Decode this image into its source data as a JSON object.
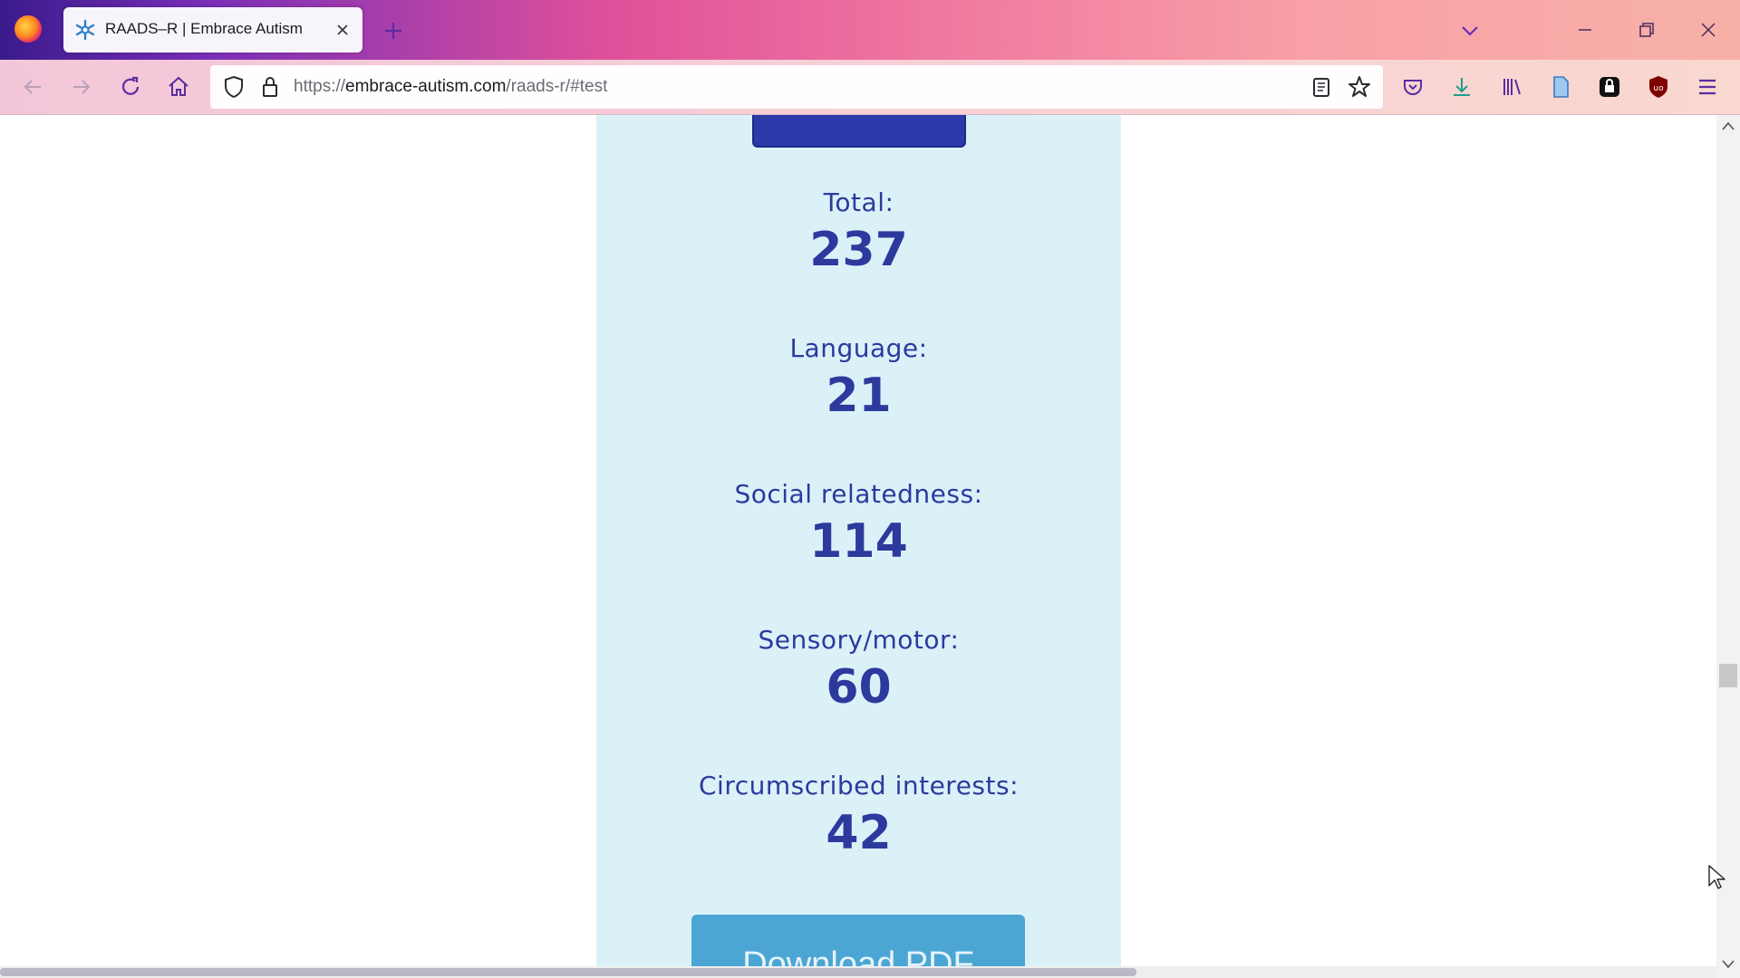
{
  "browser": {
    "tab": {
      "title": "RAADS–R | Embrace Autism"
    },
    "url": {
      "prefix": "https://",
      "host": "embrace-autism.com",
      "path": "/raads-r/#test"
    }
  },
  "results": {
    "items": [
      {
        "label": "Total:",
        "value": "237"
      },
      {
        "label": "Language:",
        "value": "21"
      },
      {
        "label": "Social relatedness:",
        "value": "114"
      },
      {
        "label": "Sensory/motor:",
        "value": "60"
      },
      {
        "label": "Circumscribed interests:",
        "value": "42"
      }
    ],
    "download_label": "Download PDF"
  },
  "colors": {
    "panel_bg": "#dbf1f8",
    "accent_text": "#2c3a9e",
    "button_blue": "#4ba6d4",
    "top_button": "#2b3aa8"
  },
  "icons": [
    "firefox-logo-icon",
    "embrace-autism-favicon-icon",
    "close-icon",
    "plus-icon",
    "chevron-down-icon",
    "minimize-icon",
    "restore-icon",
    "back-icon",
    "forward-icon",
    "reload-icon",
    "home-icon",
    "shield-icon",
    "lock-icon",
    "reader-view-icon",
    "star-icon",
    "pocket-icon",
    "download-icon",
    "library-icon",
    "document-icon",
    "password-manager-icon",
    "ublock-origin-icon",
    "menu-icon"
  ]
}
